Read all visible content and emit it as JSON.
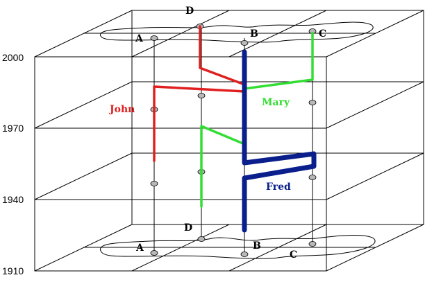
{
  "years": [
    "2000",
    "1970",
    "1940",
    "1910"
  ],
  "places_top": [
    "D",
    "A",
    "B",
    "C"
  ],
  "places_bottom": [
    "D",
    "A",
    "B",
    "C"
  ],
  "people": [
    {
      "name": "John",
      "color": "#e02020"
    },
    {
      "name": "Mary",
      "color": "#33dd33"
    },
    {
      "name": "Fred",
      "color": "#0a1e8c"
    }
  ],
  "colors": {
    "frame": "#000000",
    "dot": "#b8b8b8"
  }
}
